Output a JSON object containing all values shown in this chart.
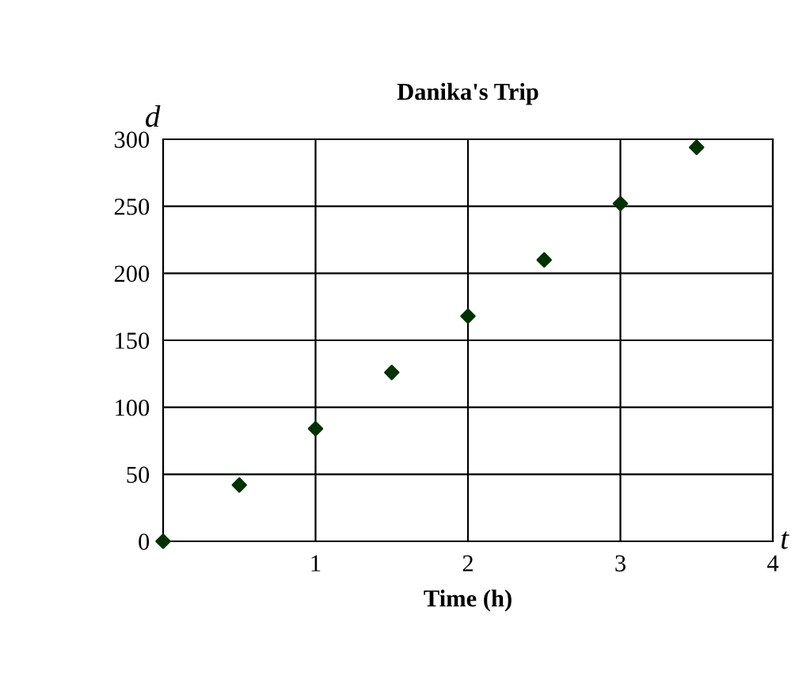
{
  "chart_data": {
    "type": "scatter",
    "title": "Danika's Trip",
    "xlabel": "Time (h)",
    "ylabel": "d",
    "annotations": [
      "t"
    ],
    "x": [
      0,
      0.5,
      1,
      1.5,
      2,
      2.5,
      3,
      3.5
    ],
    "series": [
      {
        "color": "#003300",
        "values": [
          0,
          42,
          84,
          126,
          168,
          210,
          252,
          294
        ]
      }
    ],
    "xlim": [
      0,
      4
    ],
    "xticks": [
      1,
      2,
      3,
      4
    ],
    "ylim": [
      0,
      300
    ],
    "yticks": [
      0,
      50,
      100,
      150,
      200,
      250,
      300
    ],
    "grid": true,
    "marker": "diamond",
    "legend": false
  }
}
